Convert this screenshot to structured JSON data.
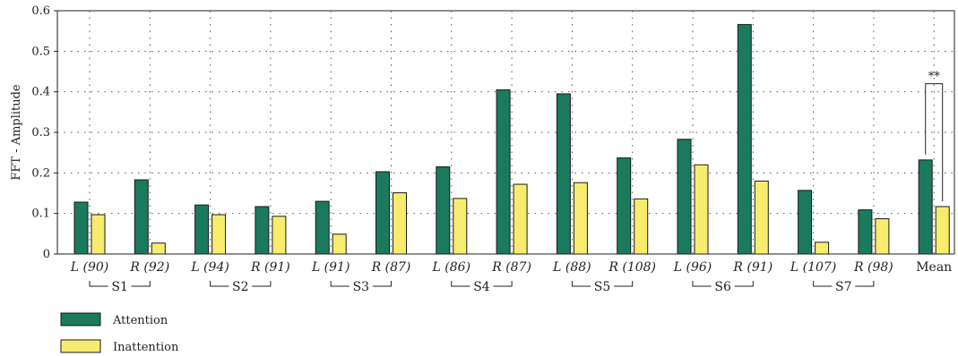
{
  "chart_data": {
    "type": "bar",
    "ylabel": "FFT - Amplitude",
    "ylim": [
      0,
      0.6
    ],
    "yticks": [
      "0",
      "0.1",
      "0.2",
      "0.3",
      "0.4",
      "0.5",
      "0.6"
    ],
    "grid": "dotted",
    "categories": [
      "L (90)",
      "R (92)",
      "L (94)",
      "R (91)",
      "L (91)",
      "R (87)",
      "L (86)",
      "R (87)",
      "L (88)",
      "R (108)",
      "L (96)",
      "R (91)",
      "L (107)",
      "R (98)",
      "Mean"
    ],
    "groups": [
      "S1",
      "S2",
      "S3",
      "S4",
      "S5",
      "S6",
      "S7"
    ],
    "series": [
      {
        "name": "Attention",
        "color": "#1b7a5e",
        "values": [
          0.128,
          0.183,
          0.121,
          0.117,
          0.13,
          0.203,
          0.215,
          0.405,
          0.395,
          0.237,
          0.283,
          0.566,
          0.157,
          0.109,
          0.232
        ]
      },
      {
        "name": "Inattention",
        "color": "#f7ec6e",
        "values": [
          0.097,
          0.027,
          0.097,
          0.093,
          0.049,
          0.151,
          0.137,
          0.172,
          0.176,
          0.136,
          0.22,
          0.18,
          0.029,
          0.087,
          0.117
        ]
      }
    ],
    "significance": {
      "label": "**",
      "category": "Mean"
    },
    "legend_position": "bottom-left"
  }
}
